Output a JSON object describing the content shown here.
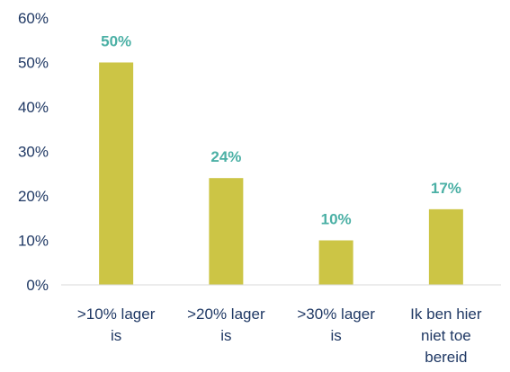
{
  "chart_data": {
    "type": "bar",
    "categories": [
      ">10% lager is",
      ">20% lager is",
      ">30% lager is",
      "Ik ben hier niet toe bereid"
    ],
    "category_lines": [
      [
        ">10% lager",
        "is"
      ],
      [
        ">20% lager",
        "is"
      ],
      [
        ">30% lager",
        "is"
      ],
      [
        "Ik ben hier",
        "niet toe",
        "bereid"
      ]
    ],
    "values": [
      50,
      24,
      10,
      17
    ],
    "data_labels": [
      "50%",
      "24%",
      "10%",
      "17%"
    ],
    "y_ticks": [
      0,
      10,
      20,
      30,
      40,
      50,
      60
    ],
    "y_tick_labels": [
      "0%",
      "10%",
      "20%",
      "30%",
      "40%",
      "50%",
      "60%"
    ],
    "ylim": [
      0,
      60
    ],
    "grid": false,
    "legend": "none",
    "title": "",
    "xlabel": "",
    "ylabel": ""
  },
  "colors": {
    "bar": "#CCC545",
    "data_label": "#4BB0A5",
    "axis_text": "#1F3864",
    "axis_line": "#D9D9D9"
  }
}
